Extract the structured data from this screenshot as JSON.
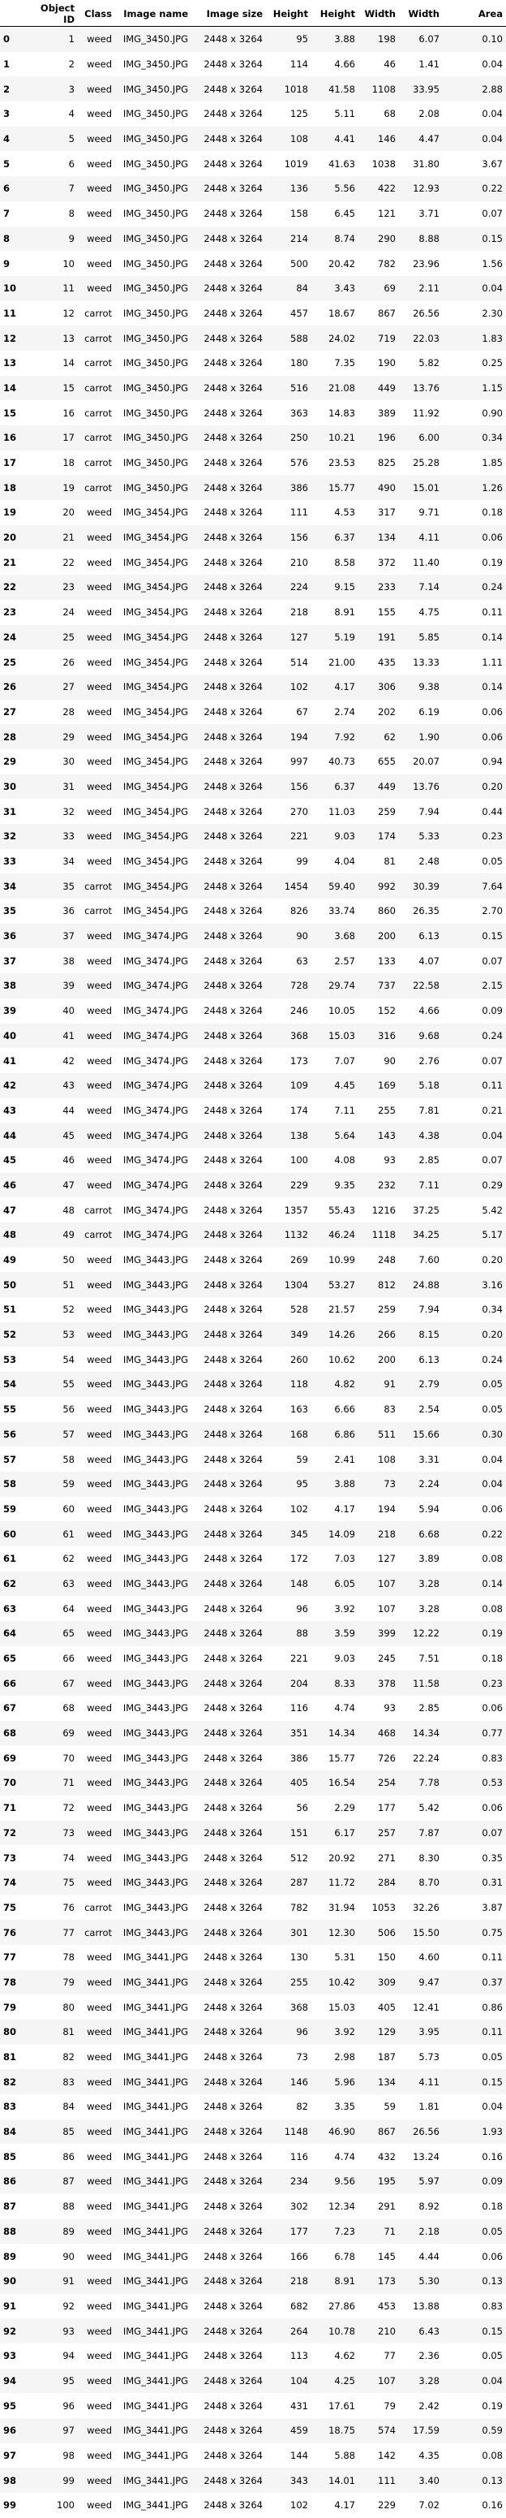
{
  "headers": [
    "",
    "Object ID",
    "Class",
    "Image name",
    "Image size",
    "Height",
    "Height",
    "Width",
    "Width",
    "Area"
  ],
  "rows": [
    [
      "0",
      "1",
      "weed",
      "IMG_3450.JPG",
      "2448 x 3264",
      "95",
      "3.88",
      "198",
      "6.07",
      "0.10"
    ],
    [
      "1",
      "2",
      "weed",
      "IMG_3450.JPG",
      "2448 x 3264",
      "114",
      "4.66",
      "46",
      "1.41",
      "0.04"
    ],
    [
      "2",
      "3",
      "weed",
      "IMG_3450.JPG",
      "2448 x 3264",
      "1018",
      "41.58",
      "1108",
      "33.95",
      "2.88"
    ],
    [
      "3",
      "4",
      "weed",
      "IMG_3450.JPG",
      "2448 x 3264",
      "125",
      "5.11",
      "68",
      "2.08",
      "0.04"
    ],
    [
      "4",
      "5",
      "weed",
      "IMG_3450.JPG",
      "2448 x 3264",
      "108",
      "4.41",
      "146",
      "4.47",
      "0.04"
    ],
    [
      "5",
      "6",
      "weed",
      "IMG_3450.JPG",
      "2448 x 3264",
      "1019",
      "41.63",
      "1038",
      "31.80",
      "3.67"
    ],
    [
      "6",
      "7",
      "weed",
      "IMG_3450.JPG",
      "2448 x 3264",
      "136",
      "5.56",
      "422",
      "12.93",
      "0.22"
    ],
    [
      "7",
      "8",
      "weed",
      "IMG_3450.JPG",
      "2448 x 3264",
      "158",
      "6.45",
      "121",
      "3.71",
      "0.07"
    ],
    [
      "8",
      "9",
      "weed",
      "IMG_3450.JPG",
      "2448 x 3264",
      "214",
      "8.74",
      "290",
      "8.88",
      "0.15"
    ],
    [
      "9",
      "10",
      "weed",
      "IMG_3450.JPG",
      "2448 x 3264",
      "500",
      "20.42",
      "782",
      "23.96",
      "1.56"
    ],
    [
      "10",
      "11",
      "weed",
      "IMG_3450.JPG",
      "2448 x 3264",
      "84",
      "3.43",
      "69",
      "2.11",
      "0.04"
    ],
    [
      "11",
      "12",
      "carrot",
      "IMG_3450.JPG",
      "2448 x 3264",
      "457",
      "18.67",
      "867",
      "26.56",
      "2.30"
    ],
    [
      "12",
      "13",
      "carrot",
      "IMG_3450.JPG",
      "2448 x 3264",
      "588",
      "24.02",
      "719",
      "22.03",
      "1.83"
    ],
    [
      "13",
      "14",
      "carrot",
      "IMG_3450.JPG",
      "2448 x 3264",
      "180",
      "7.35",
      "190",
      "5.82",
      "0.25"
    ],
    [
      "14",
      "15",
      "carrot",
      "IMG_3450.JPG",
      "2448 x 3264",
      "516",
      "21.08",
      "449",
      "13.76",
      "1.15"
    ],
    [
      "15",
      "16",
      "carrot",
      "IMG_3450.JPG",
      "2448 x 3264",
      "363",
      "14.83",
      "389",
      "11.92",
      "0.90"
    ],
    [
      "16",
      "17",
      "carrot",
      "IMG_3450.JPG",
      "2448 x 3264",
      "250",
      "10.21",
      "196",
      "6.00",
      "0.34"
    ],
    [
      "17",
      "18",
      "carrot",
      "IMG_3450.JPG",
      "2448 x 3264",
      "576",
      "23.53",
      "825",
      "25.28",
      "1.85"
    ],
    [
      "18",
      "19",
      "carrot",
      "IMG_3450.JPG",
      "2448 x 3264",
      "386",
      "15.77",
      "490",
      "15.01",
      "1.26"
    ],
    [
      "19",
      "20",
      "weed",
      "IMG_3454.JPG",
      "2448 x 3264",
      "111",
      "4.53",
      "317",
      "9.71",
      "0.18"
    ],
    [
      "20",
      "21",
      "weed",
      "IMG_3454.JPG",
      "2448 x 3264",
      "156",
      "6.37",
      "134",
      "4.11",
      "0.06"
    ],
    [
      "21",
      "22",
      "weed",
      "IMG_3454.JPG",
      "2448 x 3264",
      "210",
      "8.58",
      "372",
      "11.40",
      "0.19"
    ],
    [
      "22",
      "23",
      "weed",
      "IMG_3454.JPG",
      "2448 x 3264",
      "224",
      "9.15",
      "233",
      "7.14",
      "0.24"
    ],
    [
      "23",
      "24",
      "weed",
      "IMG_3454.JPG",
      "2448 x 3264",
      "218",
      "8.91",
      "155",
      "4.75",
      "0.11"
    ],
    [
      "24",
      "25",
      "weed",
      "IMG_3454.JPG",
      "2448 x 3264",
      "127",
      "5.19",
      "191",
      "5.85",
      "0.14"
    ],
    [
      "25",
      "26",
      "weed",
      "IMG_3454.JPG",
      "2448 x 3264",
      "514",
      "21.00",
      "435",
      "13.33",
      "1.11"
    ],
    [
      "26",
      "27",
      "weed",
      "IMG_3454.JPG",
      "2448 x 3264",
      "102",
      "4.17",
      "306",
      "9.38",
      "0.14"
    ],
    [
      "27",
      "28",
      "weed",
      "IMG_3454.JPG",
      "2448 x 3264",
      "67",
      "2.74",
      "202",
      "6.19",
      "0.06"
    ],
    [
      "28",
      "29",
      "weed",
      "IMG_3454.JPG",
      "2448 x 3264",
      "194",
      "7.92",
      "62",
      "1.90",
      "0.06"
    ],
    [
      "29",
      "30",
      "weed",
      "IMG_3454.JPG",
      "2448 x 3264",
      "997",
      "40.73",
      "655",
      "20.07",
      "0.94"
    ],
    [
      "30",
      "31",
      "weed",
      "IMG_3454.JPG",
      "2448 x 3264",
      "156",
      "6.37",
      "449",
      "13.76",
      "0.20"
    ],
    [
      "31",
      "32",
      "weed",
      "IMG_3454.JPG",
      "2448 x 3264",
      "270",
      "11.03",
      "259",
      "7.94",
      "0.44"
    ],
    [
      "32",
      "33",
      "weed",
      "IMG_3454.JPG",
      "2448 x 3264",
      "221",
      "9.03",
      "174",
      "5.33",
      "0.23"
    ],
    [
      "33",
      "34",
      "weed",
      "IMG_3454.JPG",
      "2448 x 3264",
      "99",
      "4.04",
      "81",
      "2.48",
      "0.05"
    ],
    [
      "34",
      "35",
      "carrot",
      "IMG_3454.JPG",
      "2448 x 3264",
      "1454",
      "59.40",
      "992",
      "30.39",
      "7.64"
    ],
    [
      "35",
      "36",
      "carrot",
      "IMG_3454.JPG",
      "2448 x 3264",
      "826",
      "33.74",
      "860",
      "26.35",
      "2.70"
    ],
    [
      "36",
      "37",
      "weed",
      "IMG_3474.JPG",
      "2448 x 3264",
      "90",
      "3.68",
      "200",
      "6.13",
      "0.15"
    ],
    [
      "37",
      "38",
      "weed",
      "IMG_3474.JPG",
      "2448 x 3264",
      "63",
      "2.57",
      "133",
      "4.07",
      "0.07"
    ],
    [
      "38",
      "39",
      "weed",
      "IMG_3474.JPG",
      "2448 x 3264",
      "728",
      "29.74",
      "737",
      "22.58",
      "2.15"
    ],
    [
      "39",
      "40",
      "weed",
      "IMG_3474.JPG",
      "2448 x 3264",
      "246",
      "10.05",
      "152",
      "4.66",
      "0.09"
    ],
    [
      "40",
      "41",
      "weed",
      "IMG_3474.JPG",
      "2448 x 3264",
      "368",
      "15.03",
      "316",
      "9.68",
      "0.24"
    ],
    [
      "41",
      "42",
      "weed",
      "IMG_3474.JPG",
      "2448 x 3264",
      "173",
      "7.07",
      "90",
      "2.76",
      "0.07"
    ],
    [
      "42",
      "43",
      "weed",
      "IMG_3474.JPG",
      "2448 x 3264",
      "109",
      "4.45",
      "169",
      "5.18",
      "0.11"
    ],
    [
      "43",
      "44",
      "weed",
      "IMG_3474.JPG",
      "2448 x 3264",
      "174",
      "7.11",
      "255",
      "7.81",
      "0.21"
    ],
    [
      "44",
      "45",
      "weed",
      "IMG_3474.JPG",
      "2448 x 3264",
      "138",
      "5.64",
      "143",
      "4.38",
      "0.04"
    ],
    [
      "45",
      "46",
      "weed",
      "IMG_3474.JPG",
      "2448 x 3264",
      "100",
      "4.08",
      "93",
      "2.85",
      "0.07"
    ],
    [
      "46",
      "47",
      "weed",
      "IMG_3474.JPG",
      "2448 x 3264",
      "229",
      "9.35",
      "232",
      "7.11",
      "0.29"
    ],
    [
      "47",
      "48",
      "carrot",
      "IMG_3474.JPG",
      "2448 x 3264",
      "1357",
      "55.43",
      "1216",
      "37.25",
      "5.42"
    ],
    [
      "48",
      "49",
      "carrot",
      "IMG_3474.JPG",
      "2448 x 3264",
      "1132",
      "46.24",
      "1118",
      "34.25",
      "5.17"
    ],
    [
      "49",
      "50",
      "weed",
      "IMG_3443.JPG",
      "2448 x 3264",
      "269",
      "10.99",
      "248",
      "7.60",
      "0.20"
    ],
    [
      "50",
      "51",
      "weed",
      "IMG_3443.JPG",
      "2448 x 3264",
      "1304",
      "53.27",
      "812",
      "24.88",
      "3.16"
    ],
    [
      "51",
      "52",
      "weed",
      "IMG_3443.JPG",
      "2448 x 3264",
      "528",
      "21.57",
      "259",
      "7.94",
      "0.34"
    ],
    [
      "52",
      "53",
      "weed",
      "IMG_3443.JPG",
      "2448 x 3264",
      "349",
      "14.26",
      "266",
      "8.15",
      "0.20"
    ],
    [
      "53",
      "54",
      "weed",
      "IMG_3443.JPG",
      "2448 x 3264",
      "260",
      "10.62",
      "200",
      "6.13",
      "0.24"
    ],
    [
      "54",
      "55",
      "weed",
      "IMG_3443.JPG",
      "2448 x 3264",
      "118",
      "4.82",
      "91",
      "2.79",
      "0.05"
    ],
    [
      "55",
      "56",
      "weed",
      "IMG_3443.JPG",
      "2448 x 3264",
      "163",
      "6.66",
      "83",
      "2.54",
      "0.05"
    ],
    [
      "56",
      "57",
      "weed",
      "IMG_3443.JPG",
      "2448 x 3264",
      "168",
      "6.86",
      "511",
      "15.66",
      "0.30"
    ],
    [
      "57",
      "58",
      "weed",
      "IMG_3443.JPG",
      "2448 x 3264",
      "59",
      "2.41",
      "108",
      "3.31",
      "0.04"
    ],
    [
      "58",
      "59",
      "weed",
      "IMG_3443.JPG",
      "2448 x 3264",
      "95",
      "3.88",
      "73",
      "2.24",
      "0.04"
    ],
    [
      "59",
      "60",
      "weed",
      "IMG_3443.JPG",
      "2448 x 3264",
      "102",
      "4.17",
      "194",
      "5.94",
      "0.06"
    ],
    [
      "60",
      "61",
      "weed",
      "IMG_3443.JPG",
      "2448 x 3264",
      "345",
      "14.09",
      "218",
      "6.68",
      "0.22"
    ],
    [
      "61",
      "62",
      "weed",
      "IMG_3443.JPG",
      "2448 x 3264",
      "172",
      "7.03",
      "127",
      "3.89",
      "0.08"
    ],
    [
      "62",
      "63",
      "weed",
      "IMG_3443.JPG",
      "2448 x 3264",
      "148",
      "6.05",
      "107",
      "3.28",
      "0.14"
    ],
    [
      "63",
      "64",
      "weed",
      "IMG_3443.JPG",
      "2448 x 3264",
      "96",
      "3.92",
      "107",
      "3.28",
      "0.08"
    ],
    [
      "64",
      "65",
      "weed",
      "IMG_3443.JPG",
      "2448 x 3264",
      "88",
      "3.59",
      "399",
      "12.22",
      "0.19"
    ],
    [
      "65",
      "66",
      "weed",
      "IMG_3443.JPG",
      "2448 x 3264",
      "221",
      "9.03",
      "245",
      "7.51",
      "0.18"
    ],
    [
      "66",
      "67",
      "weed",
      "IMG_3443.JPG",
      "2448 x 3264",
      "204",
      "8.33",
      "378",
      "11.58",
      "0.23"
    ],
    [
      "67",
      "68",
      "weed",
      "IMG_3443.JPG",
      "2448 x 3264",
      "116",
      "4.74",
      "93",
      "2.85",
      "0.06"
    ],
    [
      "68",
      "69",
      "weed",
      "IMG_3443.JPG",
      "2448 x 3264",
      "351",
      "14.34",
      "468",
      "14.34",
      "0.77"
    ],
    [
      "69",
      "70",
      "weed",
      "IMG_3443.JPG",
      "2448 x 3264",
      "386",
      "15.77",
      "726",
      "22.24",
      "0.83"
    ],
    [
      "70",
      "71",
      "weed",
      "IMG_3443.JPG",
      "2448 x 3264",
      "405",
      "16.54",
      "254",
      "7.78",
      "0.53"
    ],
    [
      "71",
      "72",
      "weed",
      "IMG_3443.JPG",
      "2448 x 3264",
      "56",
      "2.29",
      "177",
      "5.42",
      "0.06"
    ],
    [
      "72",
      "73",
      "weed",
      "IMG_3443.JPG",
      "2448 x 3264",
      "151",
      "6.17",
      "257",
      "7.87",
      "0.07"
    ],
    [
      "73",
      "74",
      "weed",
      "IMG_3443.JPG",
      "2448 x 3264",
      "512",
      "20.92",
      "271",
      "8.30",
      "0.35"
    ],
    [
      "74",
      "75",
      "weed",
      "IMG_3443.JPG",
      "2448 x 3264",
      "287",
      "11.72",
      "284",
      "8.70",
      "0.31"
    ],
    [
      "75",
      "76",
      "carrot",
      "IMG_3443.JPG",
      "2448 x 3264",
      "782",
      "31.94",
      "1053",
      "32.26",
      "3.87"
    ],
    [
      "76",
      "77",
      "carrot",
      "IMG_3443.JPG",
      "2448 x 3264",
      "301",
      "12.30",
      "506",
      "15.50",
      "0.75"
    ],
    [
      "77",
      "78",
      "weed",
      "IMG_3441.JPG",
      "2448 x 3264",
      "130",
      "5.31",
      "150",
      "4.60",
      "0.11"
    ],
    [
      "78",
      "79",
      "weed",
      "IMG_3441.JPG",
      "2448 x 3264",
      "255",
      "10.42",
      "309",
      "9.47",
      "0.37"
    ],
    [
      "79",
      "80",
      "weed",
      "IMG_3441.JPG",
      "2448 x 3264",
      "368",
      "15.03",
      "405",
      "12.41",
      "0.86"
    ],
    [
      "80",
      "81",
      "weed",
      "IMG_3441.JPG",
      "2448 x 3264",
      "96",
      "3.92",
      "129",
      "3.95",
      "0.11"
    ],
    [
      "81",
      "82",
      "weed",
      "IMG_3441.JPG",
      "2448 x 3264",
      "73",
      "2.98",
      "187",
      "5.73",
      "0.05"
    ],
    [
      "82",
      "83",
      "weed",
      "IMG_3441.JPG",
      "2448 x 3264",
      "146",
      "5.96",
      "134",
      "4.11",
      "0.15"
    ],
    [
      "83",
      "84",
      "weed",
      "IMG_3441.JPG",
      "2448 x 3264",
      "82",
      "3.35",
      "59",
      "1.81",
      "0.04"
    ],
    [
      "84",
      "85",
      "weed",
      "IMG_3441.JPG",
      "2448 x 3264",
      "1148",
      "46.90",
      "867",
      "26.56",
      "1.93"
    ],
    [
      "85",
      "86",
      "weed",
      "IMG_3441.JPG",
      "2448 x 3264",
      "116",
      "4.74",
      "432",
      "13.24",
      "0.16"
    ],
    [
      "86",
      "87",
      "weed",
      "IMG_3441.JPG",
      "2448 x 3264",
      "234",
      "9.56",
      "195",
      "5.97",
      "0.09"
    ],
    [
      "87",
      "88",
      "weed",
      "IMG_3441.JPG",
      "2448 x 3264",
      "302",
      "12.34",
      "291",
      "8.92",
      "0.18"
    ],
    [
      "88",
      "89",
      "weed",
      "IMG_3441.JPG",
      "2448 x 3264",
      "177",
      "7.23",
      "71",
      "2.18",
      "0.05"
    ],
    [
      "89",
      "90",
      "weed",
      "IMG_3441.JPG",
      "2448 x 3264",
      "166",
      "6.78",
      "145",
      "4.44",
      "0.06"
    ],
    [
      "90",
      "91",
      "weed",
      "IMG_3441.JPG",
      "2448 x 3264",
      "218",
      "8.91",
      "173",
      "5.30",
      "0.13"
    ],
    [
      "91",
      "92",
      "weed",
      "IMG_3441.JPG",
      "2448 x 3264",
      "682",
      "27.86",
      "453",
      "13.88",
      "0.83"
    ],
    [
      "92",
      "93",
      "weed",
      "IMG_3441.JPG",
      "2448 x 3264",
      "264",
      "10.78",
      "210",
      "6.43",
      "0.15"
    ],
    [
      "93",
      "94",
      "weed",
      "IMG_3441.JPG",
      "2448 x 3264",
      "113",
      "4.62",
      "77",
      "2.36",
      "0.05"
    ],
    [
      "94",
      "95",
      "weed",
      "IMG_3441.JPG",
      "2448 x 3264",
      "104",
      "4.25",
      "107",
      "3.28",
      "0.04"
    ],
    [
      "95",
      "96",
      "weed",
      "IMG_3441.JPG",
      "2448 x 3264",
      "431",
      "17.61",
      "79",
      "2.42",
      "0.19"
    ],
    [
      "96",
      "97",
      "weed",
      "IMG_3441.JPG",
      "2448 x 3264",
      "459",
      "18.75",
      "574",
      "17.59",
      "0.59"
    ],
    [
      "97",
      "98",
      "weed",
      "IMG_3441.JPG",
      "2448 x 3264",
      "144",
      "5.88",
      "142",
      "4.35",
      "0.08"
    ],
    [
      "98",
      "99",
      "weed",
      "IMG_3441.JPG",
      "2448 x 3264",
      "343",
      "14.01",
      "111",
      "3.40",
      "0.13"
    ],
    [
      "99",
      "100",
      "weed",
      "IMG_3441.JPG",
      "2448 x 3264",
      "102",
      "4.17",
      "229",
      "7.02",
      "0.16"
    ]
  ]
}
